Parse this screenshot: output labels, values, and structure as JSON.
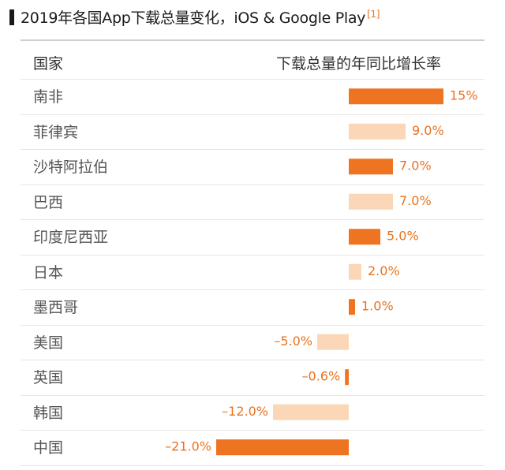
{
  "header": {
    "title": "2019年各国App下载总量变化，iOS & Google Play",
    "footnote_mark": "[1]"
  },
  "table": {
    "col_country": "国家",
    "col_growth": "下载总量的年同比增长率"
  },
  "colors": {
    "strong": "#ee7421",
    "light": "#fbd7b7",
    "label": "#e8731f"
  },
  "chart_data": {
    "type": "bar",
    "orientation": "horizontal",
    "categories": [
      "南非",
      "菲律宾",
      "沙特阿拉伯",
      "巴西",
      "印度尼西亚",
      "日本",
      "墨西哥",
      "美国",
      "英国",
      "韩国",
      "中国"
    ],
    "values": [
      15,
      9.0,
      7.0,
      7.0,
      5.0,
      2.0,
      1.0,
      -5.0,
      -0.6,
      -12.0,
      -21.0
    ],
    "value_labels": [
      "15%",
      "9.0%",
      "7.0%",
      "7.0%",
      "5.0%",
      "2.0%",
      "1.0%",
      "–5.0%",
      "–0.6%",
      "–12.0%",
      "–21.0%"
    ],
    "shade": [
      "strong",
      "light",
      "strong",
      "light",
      "strong",
      "light",
      "strong",
      "light",
      "strong",
      "light",
      "strong"
    ],
    "xlim": [
      -21,
      15
    ]
  }
}
